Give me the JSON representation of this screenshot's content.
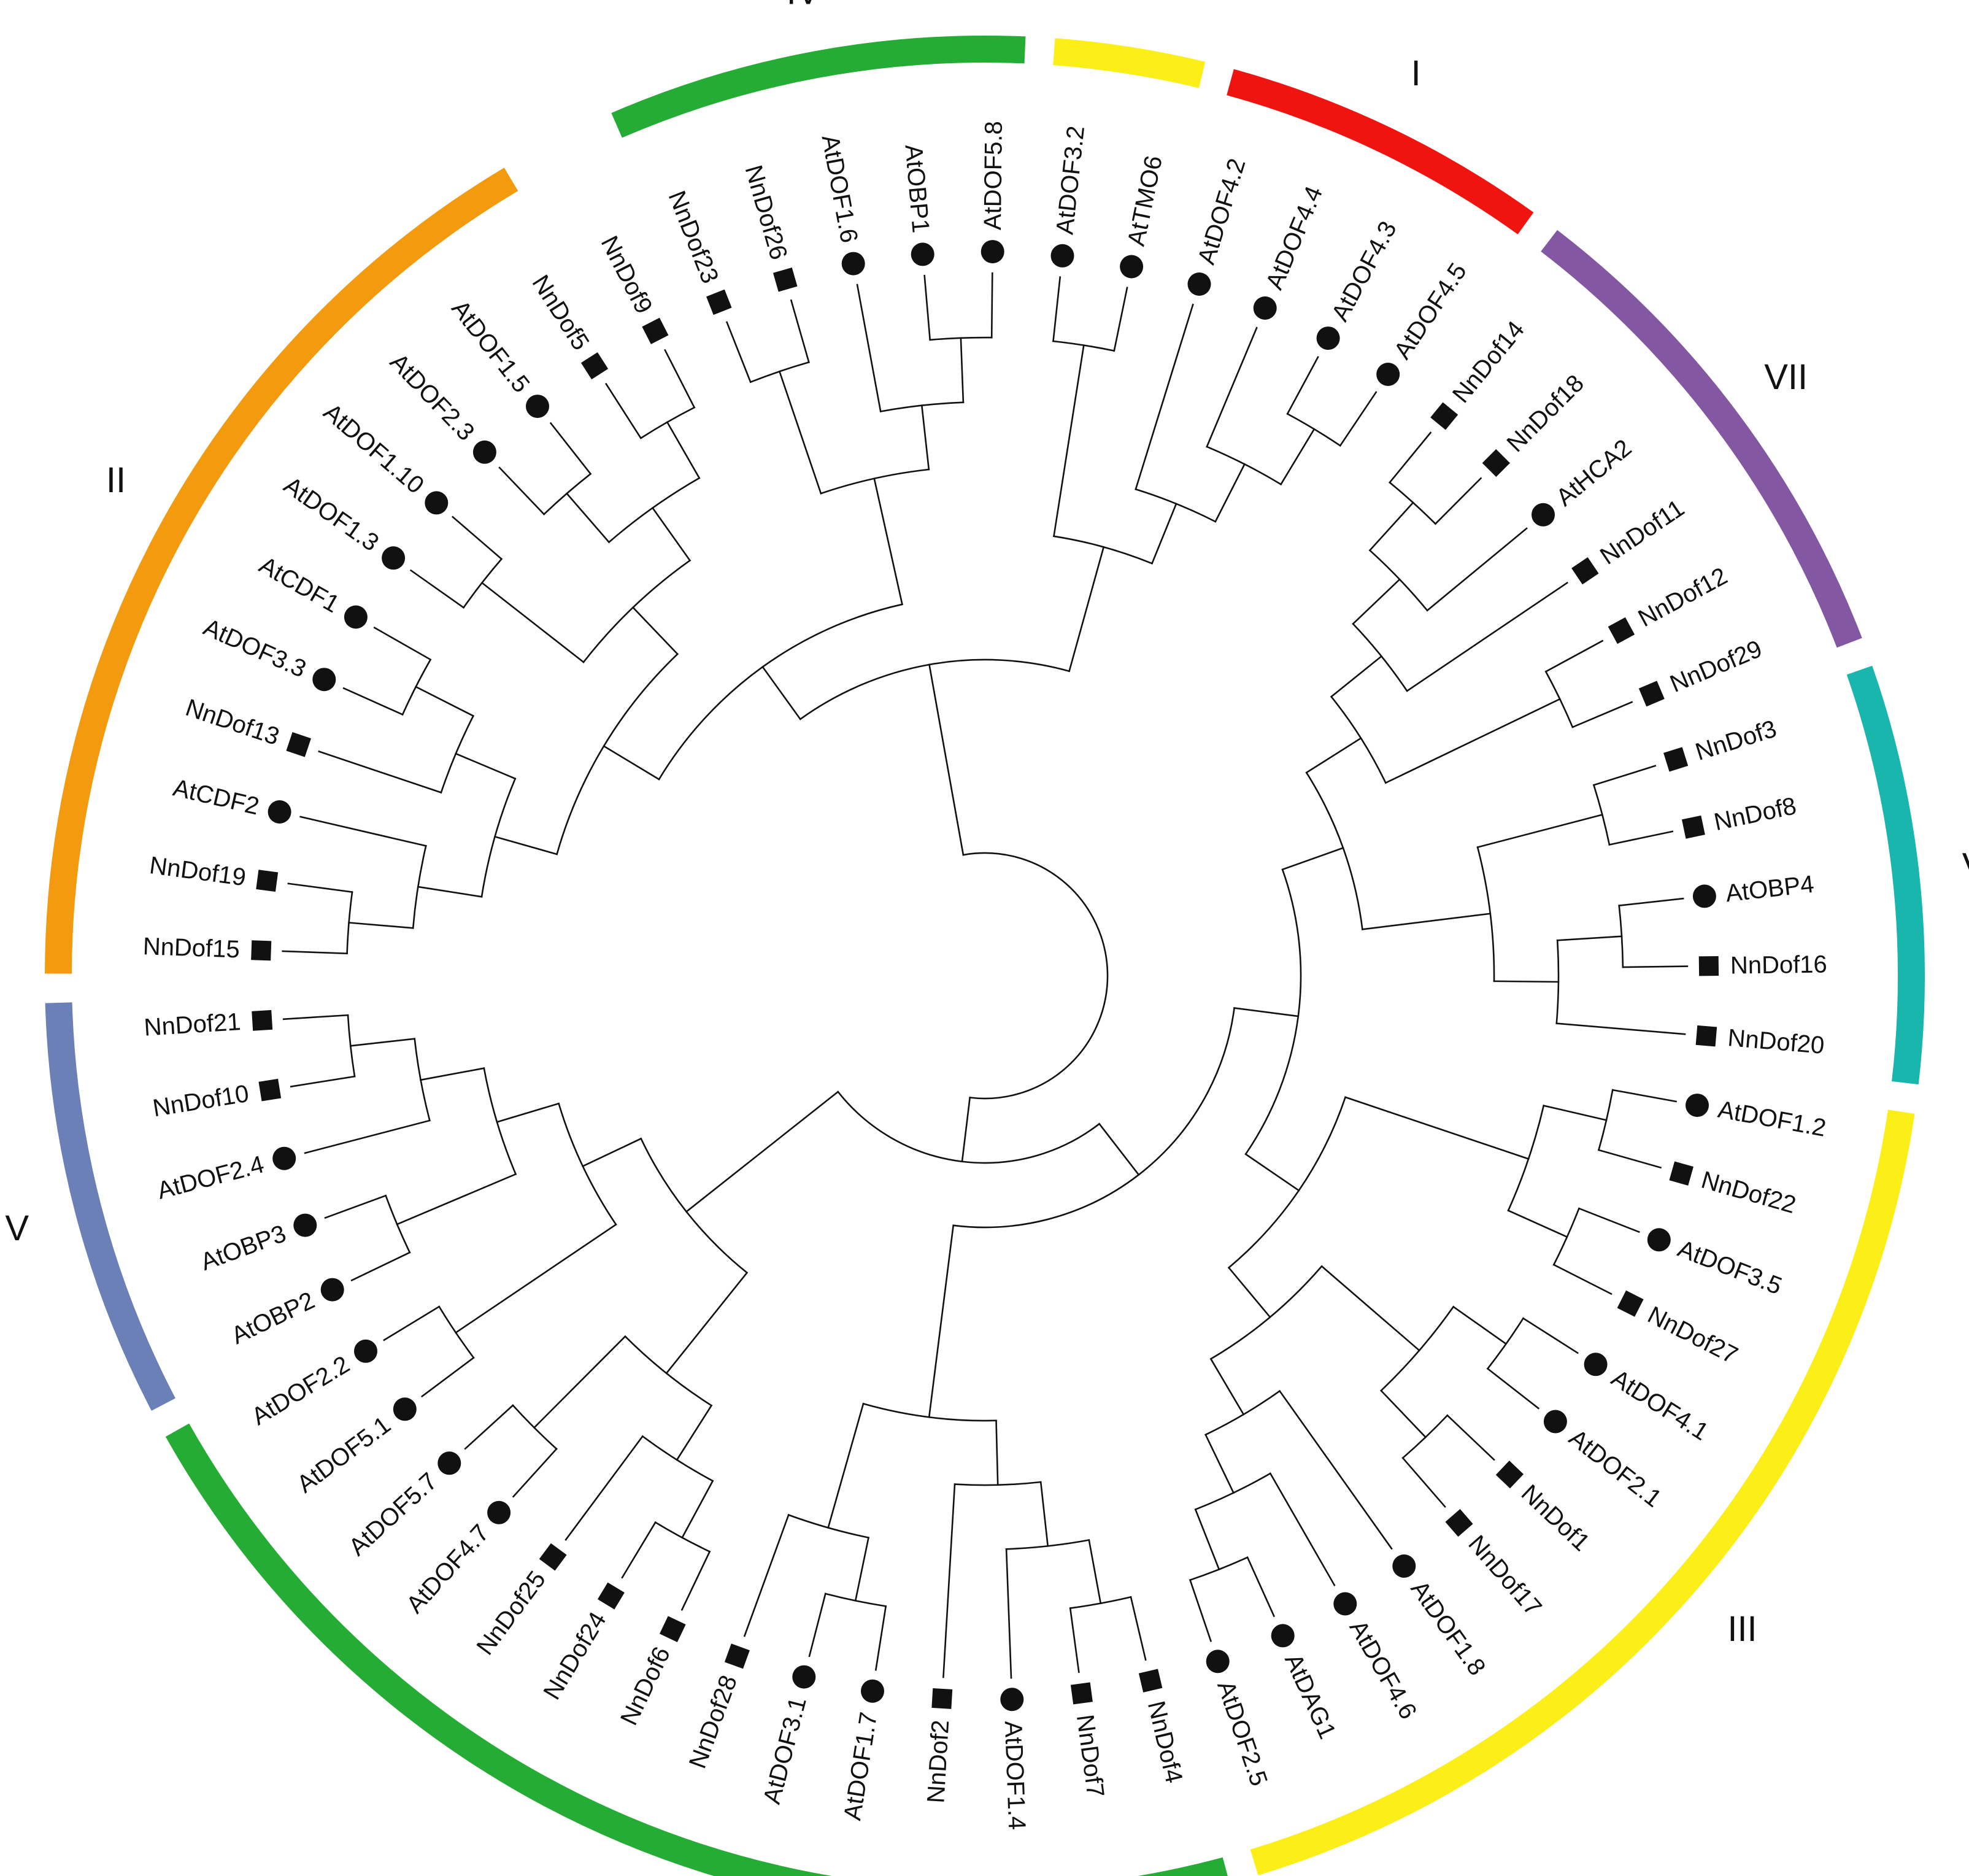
{
  "legend": {
    "nelumbo_marker": "square",
    "arabidopsis_marker": "circle"
  },
  "tips": [
    {
      "label": "NnDof15",
      "species": "Nn"
    },
    {
      "label": "NnDof19",
      "species": "Nn"
    },
    {
      "label": "AtCDF2",
      "species": "At"
    },
    {
      "label": "NnDof13",
      "species": "Nn"
    },
    {
      "label": "AtDOF3.3",
      "species": "At"
    },
    {
      "label": "AtCDF1",
      "species": "At"
    },
    {
      "label": "AtDOF1.3",
      "species": "At"
    },
    {
      "label": "AtDOF1.10",
      "species": "At"
    },
    {
      "label": "AtDOF2.3",
      "species": "At"
    },
    {
      "label": "AtDOF1.5",
      "species": "At"
    },
    {
      "label": "NnDof5",
      "species": "Nn"
    },
    {
      "label": "NnDof9",
      "species": "Nn"
    },
    {
      "label": "NnDof23",
      "species": "Nn"
    },
    {
      "label": "NnDof26",
      "species": "Nn"
    },
    {
      "label": "AtDOF1.6",
      "species": "At"
    },
    {
      "label": "AtOBP1",
      "species": "At"
    },
    {
      "label": "AtDOF5.8",
      "species": "At"
    },
    {
      "label": "AtDOF3.2",
      "species": "At"
    },
    {
      "label": "AtTMO6",
      "species": "At"
    },
    {
      "label": "AtDOF4.2",
      "species": "At"
    },
    {
      "label": "AtDOF4.4",
      "species": "At"
    },
    {
      "label": "AtDOF4.3",
      "species": "At"
    },
    {
      "label": "AtDOF4.5",
      "species": "At"
    },
    {
      "label": "NnDof14",
      "species": "Nn"
    },
    {
      "label": "NnDof18",
      "species": "Nn"
    },
    {
      "label": "AtHCA2",
      "species": "At"
    },
    {
      "label": "NnDof11",
      "species": "Nn"
    },
    {
      "label": "NnDof12",
      "species": "Nn"
    },
    {
      "label": "NnDof29",
      "species": "Nn"
    },
    {
      "label": "NnDof3",
      "species": "Nn"
    },
    {
      "label": "NnDof8",
      "species": "Nn"
    },
    {
      "label": "AtOBP4",
      "species": "At"
    },
    {
      "label": "NnDof16",
      "species": "Nn"
    },
    {
      "label": "NnDof20",
      "species": "Nn"
    },
    {
      "label": "AtDOF1.2",
      "species": "At"
    },
    {
      "label": "NnDof22",
      "species": "Nn"
    },
    {
      "label": "AtDOF3.5",
      "species": "At"
    },
    {
      "label": "NnDof27",
      "species": "Nn"
    },
    {
      "label": "AtDOF4.1",
      "species": "At"
    },
    {
      "label": "AtDOF2.1",
      "species": "At"
    },
    {
      "label": "NnDof1",
      "species": "Nn"
    },
    {
      "label": "NnDof17",
      "species": "Nn"
    },
    {
      "label": "AtDOF1.8",
      "species": "At"
    },
    {
      "label": "AtDOF4.6",
      "species": "At"
    },
    {
      "label": "AtDAG1",
      "species": "At"
    },
    {
      "label": "AtDOF2.5",
      "species": "At"
    },
    {
      "label": "NnDof4",
      "species": "Nn"
    },
    {
      "label": "NnDof7",
      "species": "Nn"
    },
    {
      "label": "AtDOF1.4",
      "species": "At"
    },
    {
      "label": "NnDof2",
      "species": "Nn"
    },
    {
      "label": "AtDOF1.7",
      "species": "At"
    },
    {
      "label": "AtDOF3.1",
      "species": "At"
    },
    {
      "label": "NnDof28",
      "species": "Nn"
    },
    {
      "label": "NnDof6",
      "species": "Nn"
    },
    {
      "label": "NnDof24",
      "species": "Nn"
    },
    {
      "label": "NnDof25",
      "species": "Nn"
    },
    {
      "label": "AtDOF4.7",
      "species": "At"
    },
    {
      "label": "AtDOF5.7",
      "species": "At"
    },
    {
      "label": "AtDOF5.1",
      "species": "At"
    },
    {
      "label": "AtDOF2.2",
      "species": "At"
    },
    {
      "label": "AtOBP2",
      "species": "At"
    },
    {
      "label": "AtOBP3",
      "species": "At"
    },
    {
      "label": "AtDOF2.4",
      "species": "At"
    },
    {
      "label": "NnDof10",
      "species": "Nn"
    },
    {
      "label": "NnDof21",
      "species": "Nn"
    }
  ],
  "tree_newick": "(((((((NnDof15,NnDof19),AtCDF2),(NnDof13,(AtDOF3.3,AtCDF1))),((AtDOF1.3,AtDOF1.10),((AtDOF2.3,AtDOF1.5),(NnDof5,NnDof9)))),((NnDof23,NnDof26),(AtDOF1.6,(AtOBP1,AtDOF5.8)))),((AtDOF3.2,AtTMO6),(AtDOF4.2,(AtDOF4.4,(AtDOF4.3,AtDOF4.5))))),((((((((NnDof14,NnDof18),AtHCA2),NnDof11),(NnDof12,NnDof29)),((NnDof3,NnDof8),((AtOBP4,NnDof16),NnDof20))),(((AtDOF1.2,NnDof22),(AtDOF3.5,NnDof27)),(((AtDOF4.1,AtDOF2.1),(NnDof1,NnDof17)),(AtDOF1.8,(AtDOF4.6,(AtDAG1,AtDOF2.5)))))),((((NnDof4,NnDof7),AtDOF1.4),NnDof2),((AtDOF1.7,AtDOF3.1),NnDof28))),((((NnDof6,NnDof24),NnDof25),(AtDOF4.7,AtDOF5.7)),((AtDOF5.1,AtDOF2.2),((AtOBP2,AtOBP3),(AtDOF2.4,(NnDof10,NnDof21))))))));",
  "clades": [
    {
      "label": "II",
      "first": "NnDof15",
      "last": "NnDof5",
      "color": "#f39a0f"
    },
    {
      "label": "IV",
      "first": "NnDof23",
      "last": "AtDOF5.8",
      "color": "#24ac34"
    },
    {
      "label": "III",
      "first": "AtDOF3.2",
      "last": "AtTMO6",
      "color": "#fbef17"
    },
    {
      "label": "I",
      "first": "AtDOF4.2",
      "last": "AtDOF4.5",
      "color": "#f01410"
    },
    {
      "label": "VII",
      "first": "NnDof14",
      "last": "NnDof29",
      "color": "#8457a2"
    },
    {
      "label": "VI",
      "first": "NnDof3",
      "last": "NnDof20",
      "color": "#19b6ae"
    },
    {
      "label": "III",
      "first": "AtDOF1.2",
      "last": "AtDOF2.5",
      "color": "#fbef17"
    },
    {
      "label": "IV",
      "first": "NnDof4",
      "last": "AtDOF2.2",
      "color": "#24ac34"
    },
    {
      "label": "V",
      "first": "AtOBP2",
      "last": "NnDof21",
      "color": "#6b80b6"
    }
  ]
}
